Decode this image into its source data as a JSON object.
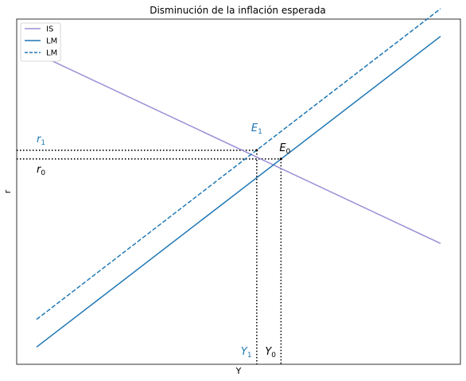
{
  "chart_data": {
    "type": "line",
    "title": "Disminución de la inflación esperada",
    "xlabel": "Y",
    "ylabel": "r",
    "xlim": [
      0,
      10
    ],
    "ylim": [
      0,
      10
    ],
    "grid": false,
    "legend_placement": "top-left",
    "series": [
      {
        "name": "IS",
        "style": "solid",
        "color": "#9a8fd6",
        "x": [
          0,
          10
        ],
        "y": [
          9.0,
          3.5
        ]
      },
      {
        "name": "LM",
        "style": "solid",
        "color": "#1f77b4",
        "x": [
          0,
          10
        ],
        "y": [
          0.5,
          9.5
        ]
      },
      {
        "name": "LM",
        "style": "dashed",
        "color": "#1f77b4",
        "x": [
          0,
          10
        ],
        "y": [
          1.3,
          10.3
        ]
      }
    ],
    "points": [
      {
        "name": "E0",
        "label": "E",
        "sub": "0",
        "x": 6.05,
        "y": 5.95,
        "color": "#000000"
      },
      {
        "name": "E1",
        "label": "E",
        "sub": "1",
        "x": 5.45,
        "y": 6.2,
        "color": "#1f77b4"
      }
    ],
    "annotations": [
      {
        "label": "r",
        "sub": "1",
        "color": "#1f77b4"
      },
      {
        "label": "r",
        "sub": "0",
        "color": "#000000"
      },
      {
        "label": "Y",
        "sub": "1",
        "color": "#1f77b4"
      },
      {
        "label": "Y",
        "sub": "0",
        "color": "#000000"
      }
    ]
  }
}
